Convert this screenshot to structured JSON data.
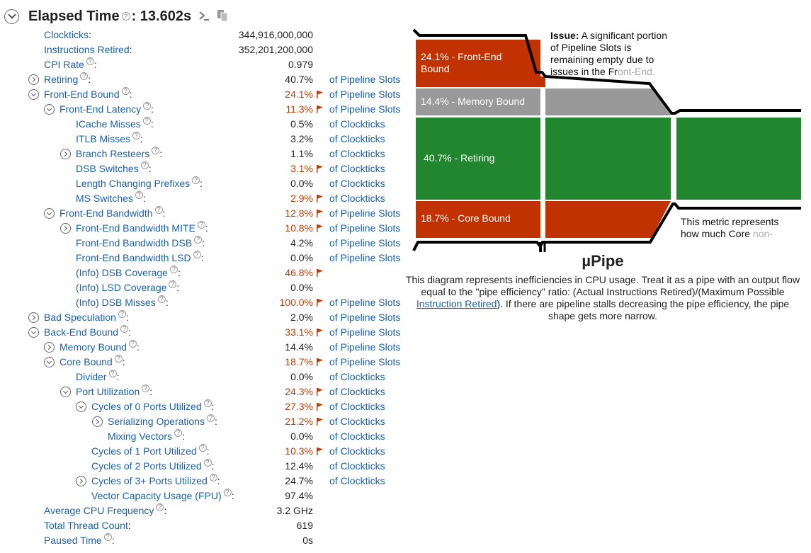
{
  "header": {
    "title": "Elapsed Time",
    "value": ": 13.602s",
    "help_glyph": "?"
  },
  "metrics": [
    {
      "label": "Clockticks",
      "value": "344,916,000,000",
      "unit": "",
      "hot": false,
      "level": 0,
      "toggle": "none",
      "help": false
    },
    {
      "label": "Instructions Retired",
      "value": "352,201,200,000",
      "unit": "",
      "hot": false,
      "level": 0,
      "toggle": "none",
      "help": false
    },
    {
      "label": "CPI Rate",
      "value": "0.979",
      "unit": "",
      "hot": false,
      "level": 0,
      "toggle": "none",
      "help": true
    },
    {
      "label": "Retiring",
      "value": "40.7%",
      "unit": "of Pipeline Slots",
      "hot": false,
      "level": 0,
      "toggle": "right",
      "help": true
    },
    {
      "label": "Front-End Bound",
      "value": "24.1%",
      "unit": "of Pipeline Slots",
      "hot": true,
      "level": 0,
      "toggle": "down",
      "help": true
    },
    {
      "label": "Front-End Latency",
      "value": "11.3%",
      "unit": "of Pipeline Slots",
      "hot": true,
      "level": 1,
      "toggle": "down",
      "help": true
    },
    {
      "label": "ICache Misses",
      "value": "0.5%",
      "unit": "of Clockticks",
      "hot": false,
      "level": 2,
      "toggle": "none",
      "help": true
    },
    {
      "label": "ITLB Misses",
      "value": "3.2%",
      "unit": "of Clockticks",
      "hot": false,
      "level": 2,
      "toggle": "none",
      "help": true
    },
    {
      "label": "Branch Resteers",
      "value": "1.1%",
      "unit": "of Clockticks",
      "hot": false,
      "level": 2,
      "toggle": "right",
      "help": true
    },
    {
      "label": "DSB Switches",
      "value": "3.1%",
      "unit": "of Clockticks",
      "hot": true,
      "level": 2,
      "toggle": "none",
      "help": true
    },
    {
      "label": "Length Changing Prefixes",
      "value": "0.0%",
      "unit": "of Clockticks",
      "hot": false,
      "level": 2,
      "toggle": "none",
      "help": true
    },
    {
      "label": "MS Switches",
      "value": "2.9%",
      "unit": "of Clockticks",
      "hot": true,
      "level": 2,
      "toggle": "none",
      "help": true
    },
    {
      "label": "Front-End Bandwidth",
      "value": "12.8%",
      "unit": "of Pipeline Slots",
      "hot": true,
      "level": 1,
      "toggle": "down",
      "help": true
    },
    {
      "label": "Front-End Bandwidth MITE",
      "value": "10.8%",
      "unit": "of Pipeline Slots",
      "hot": true,
      "level": 2,
      "toggle": "right",
      "help": true
    },
    {
      "label": "Front-End Bandwidth DSB",
      "value": "4.2%",
      "unit": "of Pipeline Slots",
      "hot": false,
      "level": 2,
      "toggle": "none",
      "help": true
    },
    {
      "label": "Front-End Bandwidth LSD",
      "value": "0.0%",
      "unit": "of Pipeline Slots",
      "hot": false,
      "level": 2,
      "toggle": "none",
      "help": true
    },
    {
      "label": "(Info) DSB Coverage",
      "value": "46.8%",
      "unit": "",
      "hot": true,
      "level": 2,
      "toggle": "none",
      "help": true
    },
    {
      "label": "(Info) LSD Coverage",
      "value": "0.0%",
      "unit": "",
      "hot": false,
      "level": 2,
      "toggle": "none",
      "help": true
    },
    {
      "label": "(Info) DSB Misses",
      "value": "100.0%",
      "unit": "of Pipeline Slots",
      "hot": true,
      "level": 2,
      "toggle": "none",
      "help": true
    },
    {
      "label": "Bad Speculation",
      "value": "2.0%",
      "unit": "of Pipeline Slots",
      "hot": false,
      "level": 0,
      "toggle": "right",
      "help": true
    },
    {
      "label": "Back-End Bound",
      "value": "33.1%",
      "unit": "of Pipeline Slots",
      "hot": true,
      "level": 0,
      "toggle": "down",
      "help": true
    },
    {
      "label": "Memory Bound",
      "value": "14.4%",
      "unit": "of Pipeline Slots",
      "hot": false,
      "level": 1,
      "toggle": "right",
      "help": true
    },
    {
      "label": "Core Bound",
      "value": "18.7%",
      "unit": "of Pipeline Slots",
      "hot": true,
      "level": 1,
      "toggle": "down",
      "help": true
    },
    {
      "label": "Divider",
      "value": "0.0%",
      "unit": "of Clockticks",
      "hot": false,
      "level": 2,
      "toggle": "none",
      "help": true
    },
    {
      "label": "Port Utilization",
      "value": "24.3%",
      "unit": "of Clockticks",
      "hot": true,
      "level": 2,
      "toggle": "down",
      "help": true
    },
    {
      "label": "Cycles of 0 Ports Utilized",
      "value": "27.3%",
      "unit": "of Clockticks",
      "hot": true,
      "level": 3,
      "toggle": "down",
      "help": true
    },
    {
      "label": "Serializing Operations",
      "value": "21.2%",
      "unit": "of Clockticks",
      "hot": true,
      "level": 4,
      "toggle": "right",
      "help": true
    },
    {
      "label": "Mixing Vectors",
      "value": "0.0%",
      "unit": "of Clockticks",
      "hot": false,
      "level": 4,
      "toggle": "none",
      "help": true
    },
    {
      "label": "Cycles of 1 Port Utilized",
      "value": "10.3%",
      "unit": "of Clockticks",
      "hot": true,
      "level": 3,
      "toggle": "none",
      "help": true
    },
    {
      "label": "Cycles of 2 Ports Utilized",
      "value": "12.4%",
      "unit": "of Clockticks",
      "hot": false,
      "level": 3,
      "toggle": "none",
      "help": true
    },
    {
      "label": "Cycles of 3+ Ports Utilized",
      "value": "24.7%",
      "unit": "of Clockticks",
      "hot": false,
      "level": 3,
      "toggle": "right",
      "help": true
    },
    {
      "label": "Vector Capacity Usage (FPU)",
      "value": "97.4%",
      "unit": "",
      "hot": false,
      "level": 3,
      "toggle": "none",
      "help": true
    },
    {
      "label": "Average CPU Frequency",
      "value": "3.2 GHz",
      "unit": "",
      "hot": false,
      "level": 0,
      "toggle": "none",
      "help": true
    },
    {
      "label": "Total Thread Count",
      "value": "619",
      "unit": "",
      "hot": false,
      "level": 0,
      "toggle": "none",
      "help": false
    },
    {
      "label": "Paused Time",
      "value": "0s",
      "unit": "",
      "hot": false,
      "level": 0,
      "toggle": "none",
      "help": true
    }
  ],
  "pipe": {
    "segments": {
      "front_end": "24.1% - Front-End Bound",
      "memory": "14.4% - Memory Bound",
      "retiring": "40.7% - Retiring",
      "core": "18.7% - Core Bound"
    },
    "issue_bold": "Issue:",
    "issue_text": " A significant portion of Pipeline Slots is remaining empty due to issues in the Fr",
    "issue_fade": "ont-End.",
    "metric_text": "This metric represents how much Core",
    "metric_fade": " non-",
    "title": "µPipe",
    "desc_1": "This diagram represents inefficiencies in CPU usage. Treat it as a pipe with an output flow equal to the \"pipe efficiency\" ratio: (Actual Instructions Retired)/(Maximum Possible ",
    "desc_link": "Instruction Retired",
    "desc_2": "). If there are pipeline stalls decreasing the pipe efficiency, the pipe shape gets more narrow.",
    "colors": {
      "red": "#c23200",
      "gray": "#999999",
      "green": "#21862e",
      "outline": "#000000"
    }
  }
}
